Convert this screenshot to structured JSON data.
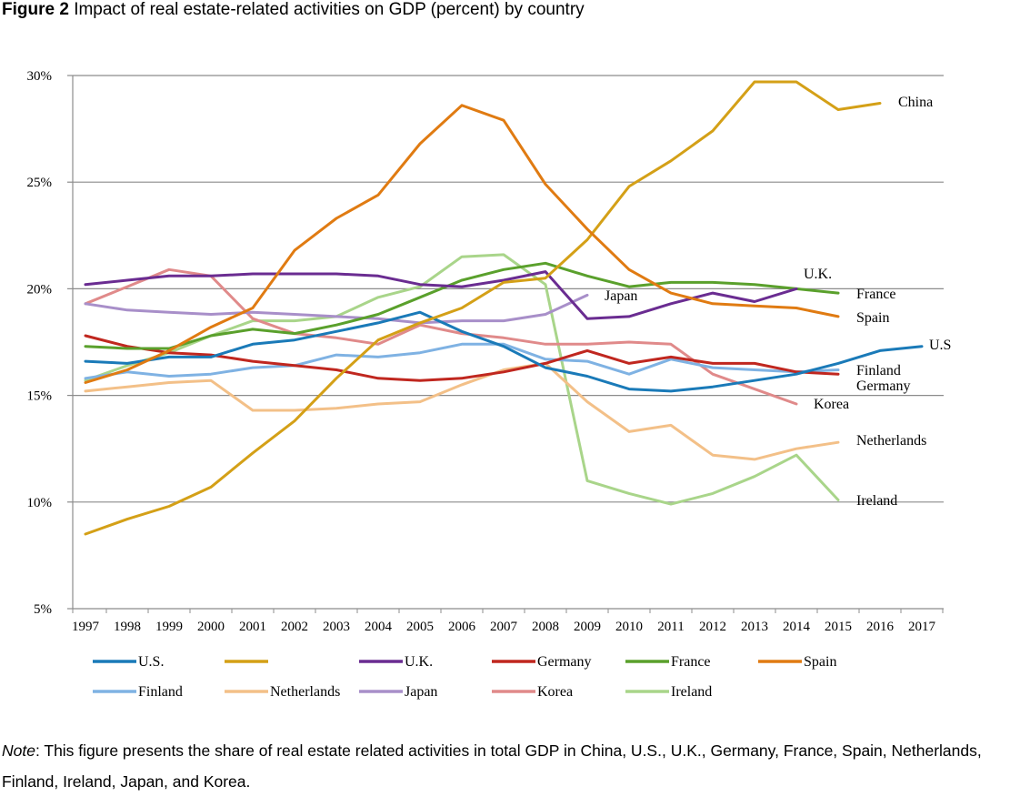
{
  "figure": {
    "label": "Figure 2",
    "caption": "Impact of real estate-related activities on GDP (percent) by country"
  },
  "note": {
    "label": "Note",
    "text": ": This figure presents the share of real estate related activities in total GDP in China, U.S., U.K., Germany, France, Spain, Netherlands, Finland, Ireland, Japan, and Korea."
  },
  "chart_data": {
    "type": "line",
    "x": [
      1997,
      1998,
      1999,
      2000,
      2001,
      2002,
      2003,
      2004,
      2005,
      2006,
      2007,
      2008,
      2009,
      2010,
      2011,
      2012,
      2013,
      2014,
      2015,
      2016,
      2017
    ],
    "ylim": [
      5,
      30
    ],
    "yticks": [
      5,
      10,
      15,
      20,
      25,
      30
    ],
    "ytick_labels": [
      "5%",
      "10%",
      "15%",
      "20%",
      "25%",
      "30%"
    ],
    "grid": "horizontal",
    "series": [
      {
        "name": "U.S.",
        "color": "#1a7ab8",
        "end_label": "U.S",
        "values": [
          16.6,
          16.5,
          16.8,
          16.8,
          17.4,
          17.6,
          18.0,
          18.4,
          18.9,
          18.0,
          17.3,
          16.3,
          15.9,
          15.3,
          15.2,
          15.4,
          15.7,
          16.0,
          16.5,
          17.1,
          17.3
        ]
      },
      {
        "name": "",
        "color": "#d4a017",
        "end_label": "China",
        "values": [
          8.5,
          9.2,
          9.8,
          10.7,
          12.3,
          13.8,
          15.8,
          17.6,
          18.4,
          19.1,
          20.3,
          20.5,
          22.3,
          24.8,
          26.0,
          27.4,
          29.7,
          29.7,
          28.4,
          28.7,
          null
        ]
      },
      {
        "name": "U.K.",
        "color": "#6a2c91",
        "end_label": "U.K.",
        "values": [
          20.2,
          20.4,
          20.6,
          20.6,
          20.7,
          20.7,
          20.7,
          20.6,
          20.2,
          20.1,
          20.4,
          20.8,
          18.6,
          18.7,
          19.3,
          19.8,
          19.4,
          20.0,
          null,
          null,
          null
        ]
      },
      {
        "name": "Germany",
        "color": "#c0271f",
        "end_label": "Germany",
        "values": [
          17.8,
          17.3,
          17.0,
          16.9,
          16.6,
          16.4,
          16.2,
          15.8,
          15.7,
          15.8,
          16.1,
          16.5,
          17.1,
          16.5,
          16.8,
          16.5,
          16.5,
          16.1,
          16.0,
          null,
          null
        ]
      },
      {
        "name": "France",
        "color": "#5aa02c",
        "end_label": "France",
        "values": [
          17.3,
          17.2,
          17.2,
          17.8,
          18.1,
          17.9,
          18.3,
          18.8,
          19.6,
          20.4,
          20.9,
          21.2,
          20.6,
          20.1,
          20.3,
          20.3,
          20.2,
          20.0,
          19.8,
          null,
          null
        ]
      },
      {
        "name": "Spain",
        "color": "#e07b12",
        "end_label": "Spain",
        "values": [
          15.6,
          16.2,
          17.1,
          18.2,
          19.1,
          21.8,
          23.3,
          24.4,
          26.8,
          28.6,
          27.9,
          24.9,
          22.8,
          20.9,
          19.8,
          19.3,
          19.2,
          19.1,
          18.7,
          null,
          null
        ]
      },
      {
        "name": "Finland",
        "color": "#7fb2e3",
        "end_label": "Finland",
        "values": [
          15.8,
          16.1,
          15.9,
          16.0,
          16.3,
          16.4,
          16.9,
          16.8,
          17.0,
          17.4,
          17.4,
          16.7,
          16.6,
          16.0,
          16.7,
          16.3,
          16.2,
          16.1,
          16.2,
          null,
          null
        ]
      },
      {
        "name": "Netherlands",
        "color": "#f3c088",
        "end_label": "Netherlands",
        "values": [
          15.2,
          15.4,
          15.6,
          15.7,
          14.3,
          14.3,
          14.4,
          14.6,
          14.7,
          15.5,
          16.2,
          16.5,
          14.7,
          13.3,
          13.6,
          12.2,
          12.0,
          12.5,
          12.8,
          null,
          null
        ]
      },
      {
        "name": "Japan",
        "color": "#a88fc9",
        "end_label": "Japan",
        "values": [
          19.3,
          19.0,
          18.9,
          18.8,
          18.9,
          18.8,
          18.7,
          18.6,
          18.4,
          18.5,
          18.5,
          18.8,
          19.7,
          null,
          null,
          null,
          null,
          null,
          null,
          null,
          null
        ]
      },
      {
        "name": "Korea",
        "color": "#e08a8a",
        "end_label": "Korea",
        "values": [
          19.3,
          20.1,
          20.9,
          20.6,
          18.6,
          17.9,
          17.7,
          17.4,
          18.3,
          17.9,
          17.7,
          17.4,
          17.4,
          17.5,
          17.4,
          16.0,
          15.3,
          14.6,
          null,
          null,
          null
        ]
      },
      {
        "name": "Ireland",
        "color": "#a9d58a",
        "end_label": "Ireland",
        "values": [
          15.7,
          16.4,
          17.0,
          17.8,
          18.5,
          18.5,
          18.7,
          19.6,
          20.1,
          21.5,
          21.6,
          20.2,
          11.0,
          10.4,
          9.9,
          10.4,
          11.2,
          12.2,
          10.1,
          null,
          null
        ]
      }
    ]
  }
}
